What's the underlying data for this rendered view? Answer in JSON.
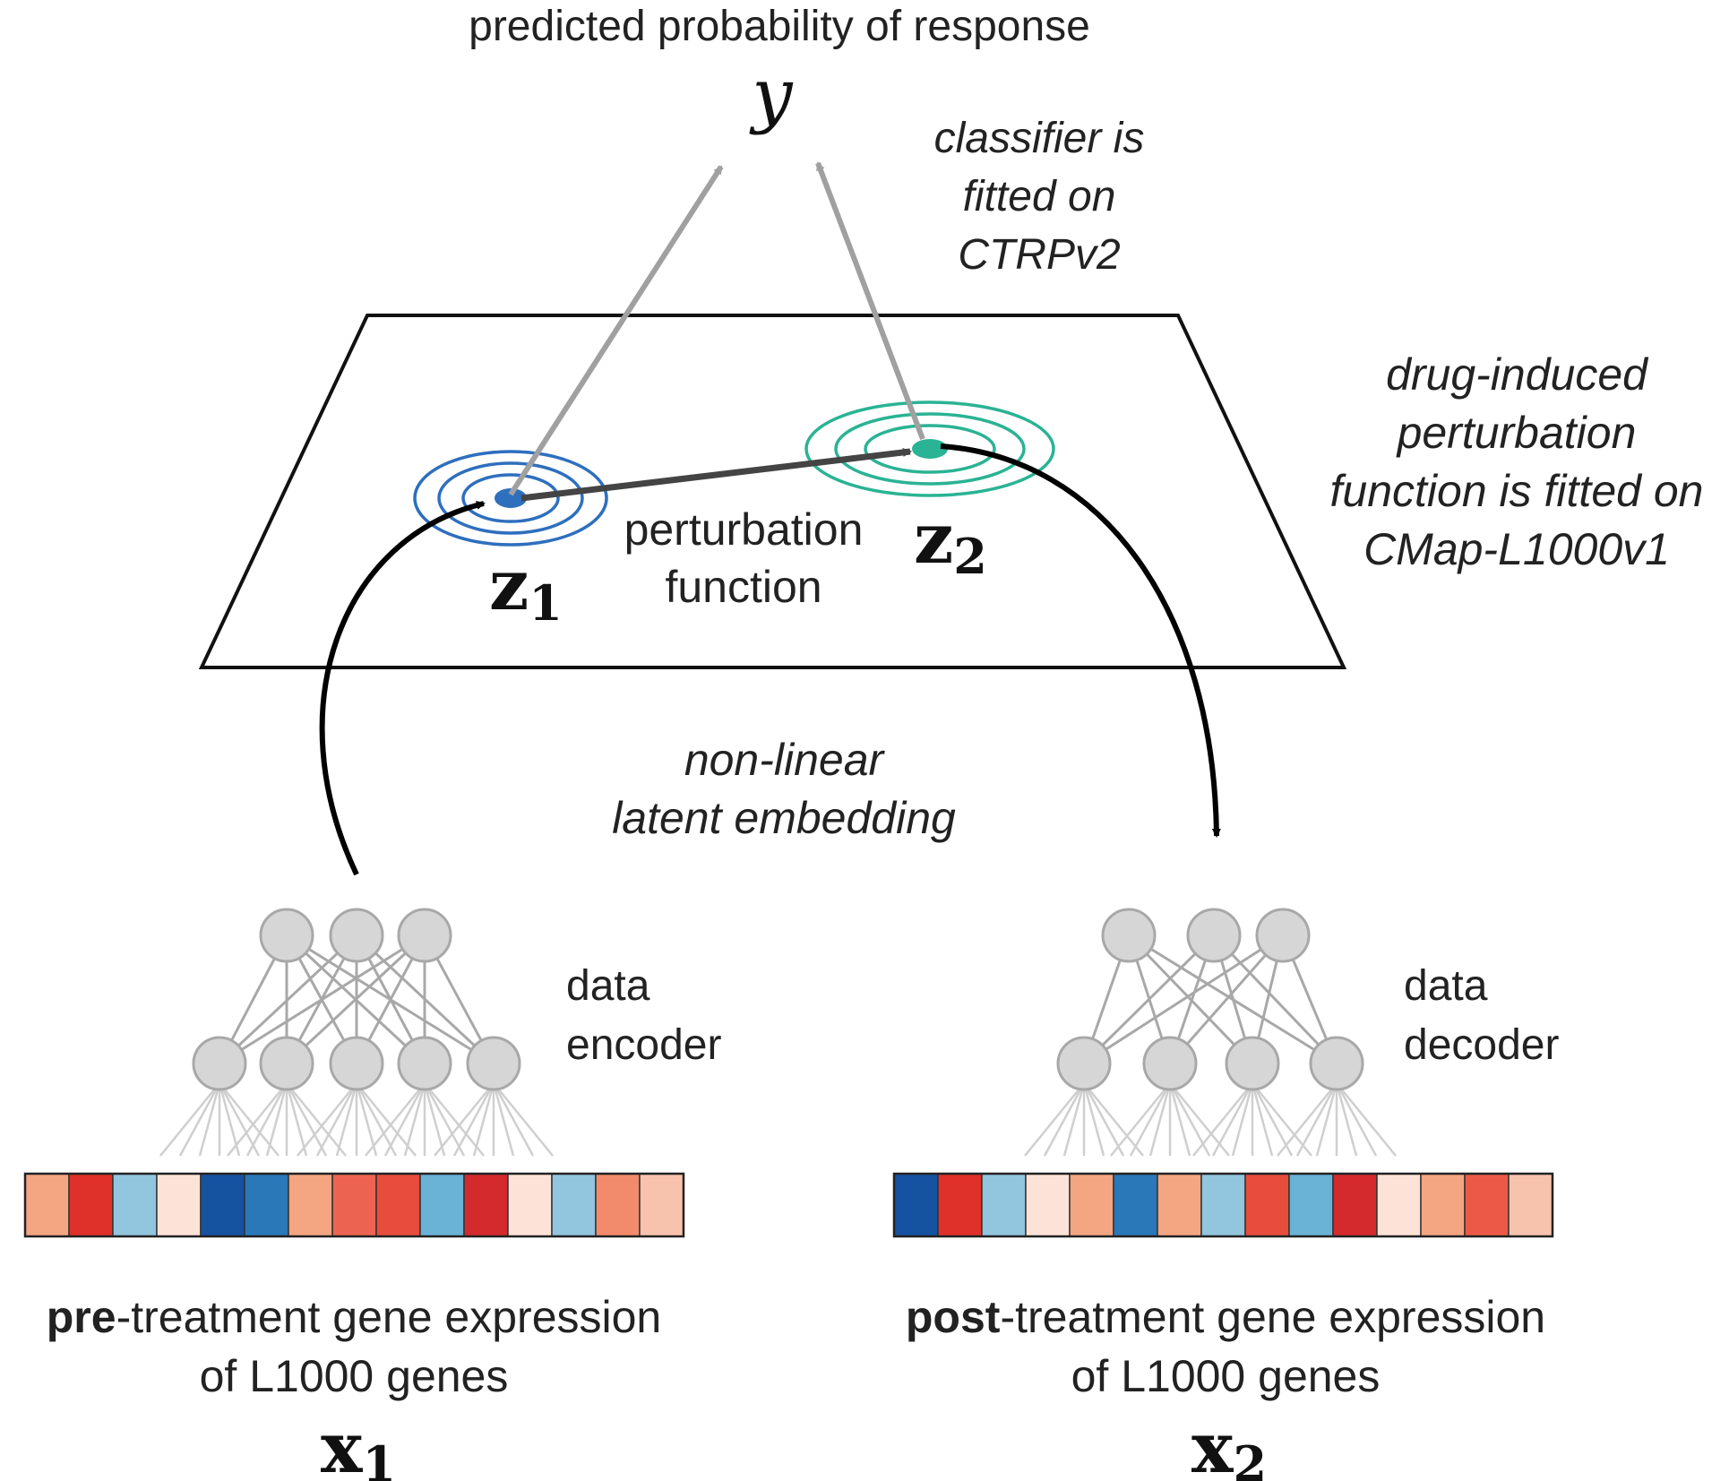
{
  "top": {
    "title": "predicted probability of response",
    "y_symbol": "y"
  },
  "notes": {
    "classifier": [
      "classifier is",
      "fitted on",
      "CTRPv2"
    ],
    "perturbation_fit": [
      "drug-induced",
      "perturbation",
      "function is fitted on",
      "CMap-L1000v1"
    ],
    "embedding": [
      "non-linear",
      "latent embedding"
    ]
  },
  "plane": {
    "perturbation_label": [
      "perturbation",
      "function"
    ],
    "z1": {
      "base": "z",
      "sub": "1"
    },
    "z2": {
      "base": "z",
      "sub": "2"
    }
  },
  "encoder": {
    "label": [
      "data",
      "encoder"
    ],
    "input_colors": [
      "#f4a582",
      "#e0302a",
      "#92c5de",
      "#fde3d7",
      "#1552a0",
      "#2a78b8",
      "#f4a582",
      "#ec6451",
      "#e84c3d",
      "#6ab2d6",
      "#d42a2e",
      "#fde3d7",
      "#92c5de",
      "#f28b6c",
      "#f8c3ad"
    ],
    "caption_bold": "pre",
    "caption_rest": "-treatment gene expression",
    "caption_line2": "of L1000 genes",
    "symbol": {
      "base": "x",
      "sub": "1"
    }
  },
  "decoder": {
    "label": [
      "data",
      "decoder"
    ],
    "output_colors": [
      "#1552a0",
      "#e0302a",
      "#92c5de",
      "#fde3d7",
      "#f4a582",
      "#2a78b8",
      "#f4a582",
      "#92c5de",
      "#e84c3d",
      "#6ab2d6",
      "#d42a2e",
      "#fde3d7",
      "#f4a582",
      "#ec5a47",
      "#f8c3ad"
    ],
    "caption_bold": "post",
    "caption_rest": "-treatment gene expression",
    "caption_line2": "of L1000 genes",
    "symbol": {
      "base": "x",
      "sub": "2"
    }
  },
  "colors": {
    "z1": "#2e6fbe",
    "z2": "#2ab394",
    "gray_arrow": "#a0a0a0",
    "dark_arrow": "#444444",
    "node_fill": "#d6d6d6",
    "node_stroke": "#a8a8a8"
  }
}
